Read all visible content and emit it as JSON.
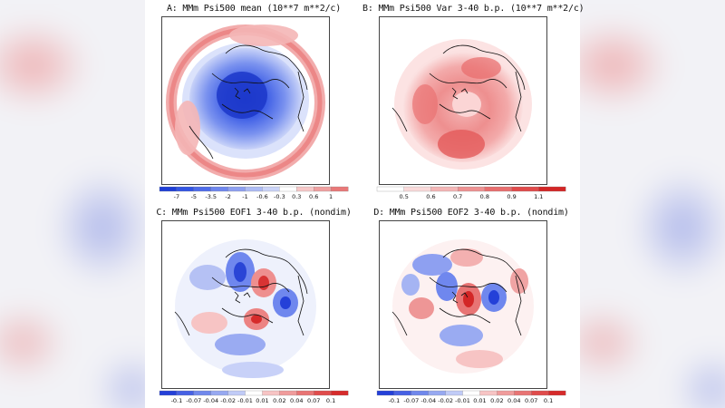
{
  "panels": [
    {
      "id": "A",
      "title": "A: MMm Psi500 mean (10**7 m**2/c)",
      "colorbar": {
        "labels": [
          "-7",
          "-5",
          "-3.5",
          "-2",
          "-1",
          "-0.6",
          "-0.3",
          "0.3",
          "0.6",
          "1"
        ],
        "colors": [
          "#1f3fd6",
          "#3355e3",
          "#4f6cea",
          "#6f87ee",
          "#8ea0f1",
          "#adbbf5",
          "#cbd4f8",
          "#ffffff",
          "#f7c8c8",
          "#f0a1a1",
          "#e97878"
        ]
      }
    },
    {
      "id": "B",
      "title": "B: MMm Psi500 Var 3-40 b.p. (10**7 m**2/c)",
      "colorbar": {
        "labels": [
          "0.5",
          "0.6",
          "0.7",
          "0.8",
          "0.9",
          "1.1"
        ],
        "colors": [
          "#ffffff",
          "#fadada",
          "#f4b6b6",
          "#ee9292",
          "#e86e6e",
          "#e04b4b",
          "#d32626"
        ]
      }
    },
    {
      "id": "C",
      "title": "C: MMm Psi500 EOF1 3-40 b.p. (nondim)",
      "colorbar": {
        "labels": [
          "-0.1",
          "-0.07",
          "-0.04",
          "-0.02",
          "-0.01",
          "0.01",
          "0.02",
          "0.04",
          "0.07",
          "0.1"
        ],
        "colors": [
          "#2440d8",
          "#4761e4",
          "#7088ec",
          "#97a9f1",
          "#c0cbf7",
          "#ffffff",
          "#f7c4c4",
          "#f09c9c",
          "#e87474",
          "#e04c4c",
          "#d62b2b"
        ]
      }
    },
    {
      "id": "D",
      "title": "D: MMm Psi500 EOF2 3-40 b.p. (nondim)",
      "colorbar": {
        "labels": [
          "-0.1",
          "-0.07",
          "-0.04",
          "-0.02",
          "-0.01",
          "0.01",
          "0.02",
          "0.04",
          "0.07",
          "0.1"
        ],
        "colors": [
          "#2440d8",
          "#4761e4",
          "#7088ec",
          "#97a9f1",
          "#c0cbf7",
          "#ffffff",
          "#f7c4c4",
          "#f09c9c",
          "#e87474",
          "#e04c4c",
          "#d62b2b"
        ]
      }
    }
  ]
}
